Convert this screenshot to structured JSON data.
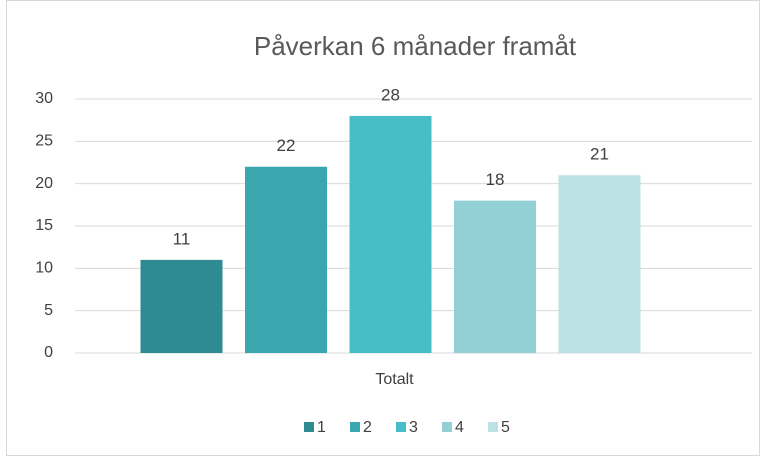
{
  "chart_data": {
    "type": "bar",
    "title": "Påverkan 6 månader framåt",
    "categories": [
      "Totalt"
    ],
    "series": [
      {
        "name": "1",
        "color": "#2e8b91",
        "values": [
          11
        ]
      },
      {
        "name": "2",
        "color": "#3aa6ae",
        "values": [
          22
        ]
      },
      {
        "name": "3",
        "color": "#47bec7",
        "values": [
          28
        ]
      },
      {
        "name": "4",
        "color": "#92d0d6",
        "values": [
          18
        ]
      },
      {
        "name": "5",
        "color": "#bde2e5",
        "values": [
          21
        ]
      }
    ],
    "ylim": [
      0,
      30
    ],
    "yticks": [
      0,
      5,
      10,
      15,
      20,
      25,
      30
    ],
    "grid": true,
    "legend": "bottom"
  }
}
